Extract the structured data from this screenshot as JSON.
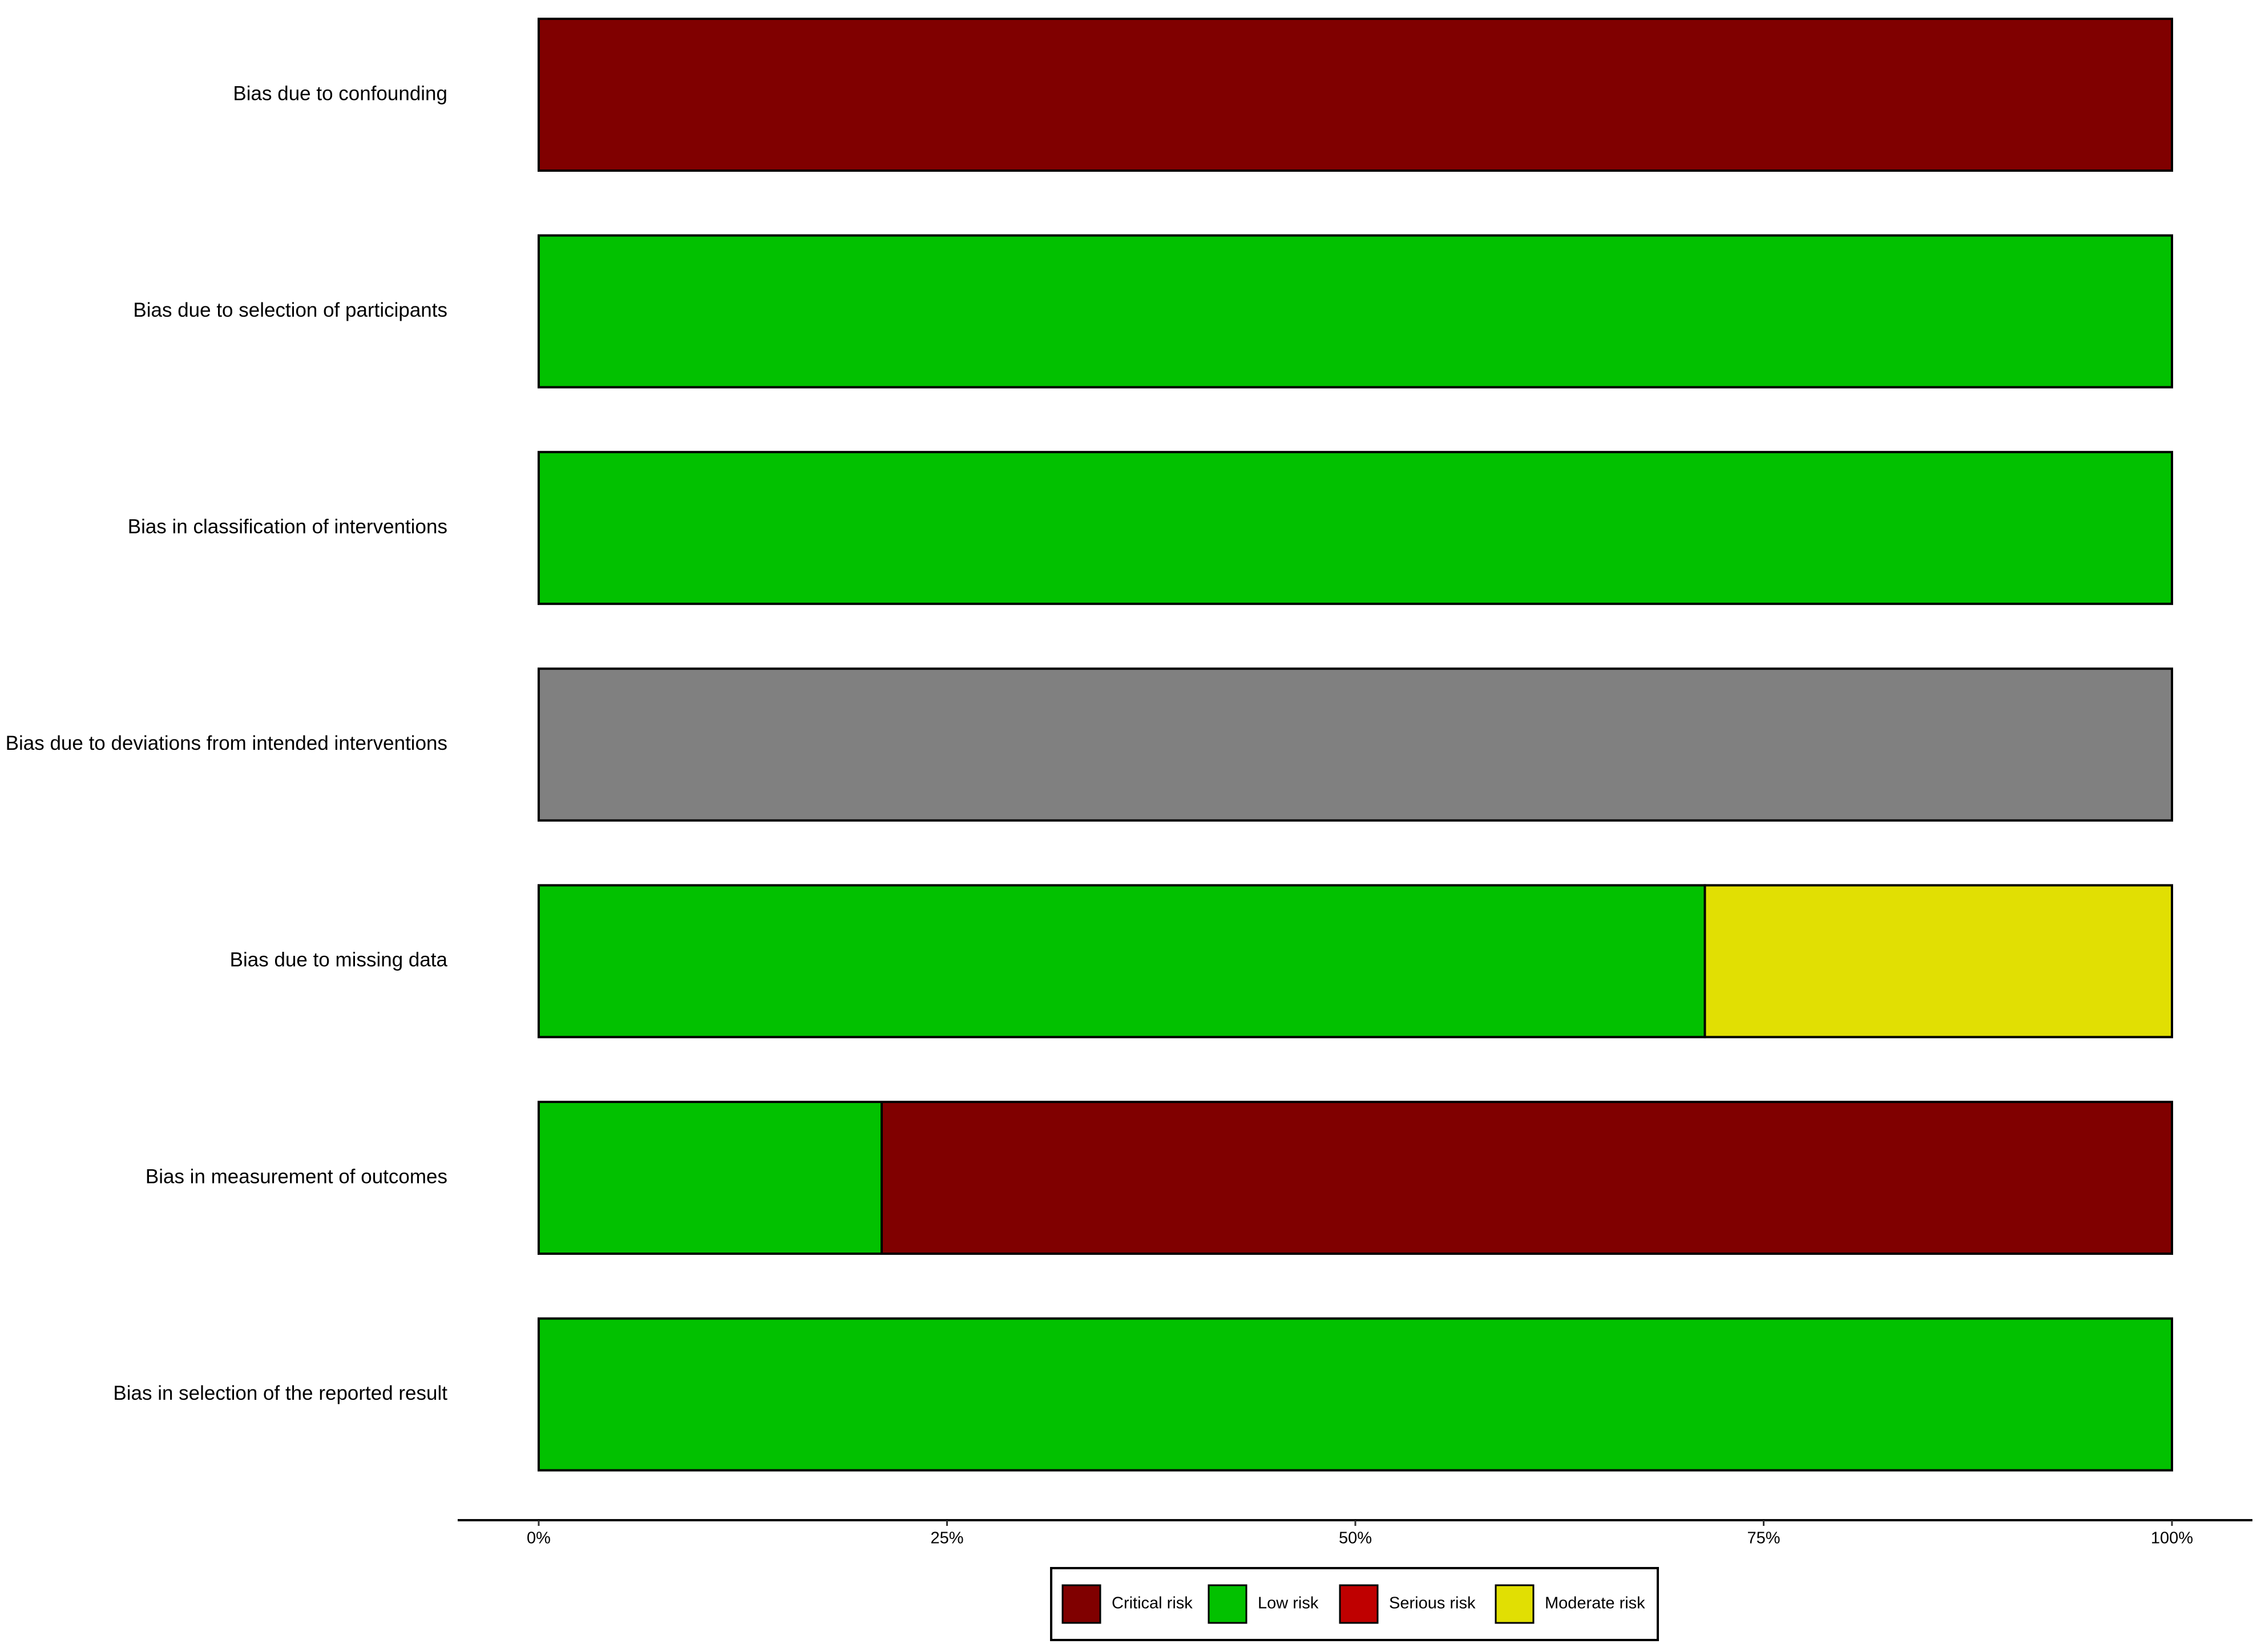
{
  "chart_data": {
    "type": "bar",
    "orientation": "horizontal",
    "stacked": true,
    "categories": [
      "Bias due to confounding",
      "Bias due to selection of participants",
      "Bias in classification of interventions",
      "Bias due to deviations from intended interventions",
      "Bias due to missing data",
      "Bias in measurement of outcomes",
      "Bias in selection of the reported result"
    ],
    "series": [
      {
        "name": "Critical risk",
        "color": "#800000",
        "values": [
          100,
          0,
          0,
          0,
          0,
          79,
          0
        ]
      },
      {
        "name": "Low risk",
        "color": "#02C100",
        "values": [
          0,
          100,
          100,
          0,
          71.4,
          21,
          100
        ]
      },
      {
        "name": "Serious risk",
        "color": "#BF0000",
        "values": [
          0,
          0,
          0,
          0,
          0,
          0,
          0
        ]
      },
      {
        "name": "Moderate risk",
        "color": "#E1DF03",
        "values": [
          0,
          0,
          0,
          0,
          28.6,
          0,
          0
        ]
      },
      {
        "name": null,
        "color": "#808080",
        "values": [
          0,
          0,
          0,
          100,
          0,
          0,
          0
        ]
      }
    ],
    "xlim": [
      0,
      100
    ],
    "xticks": [
      {
        "value": 0,
        "label": "0%"
      },
      {
        "value": 25,
        "label": "25%"
      },
      {
        "value": 50,
        "label": "50%"
      },
      {
        "value": 75,
        "label": "75%"
      },
      {
        "value": 100,
        "label": "100%"
      }
    ],
    "legend": "bottom"
  }
}
